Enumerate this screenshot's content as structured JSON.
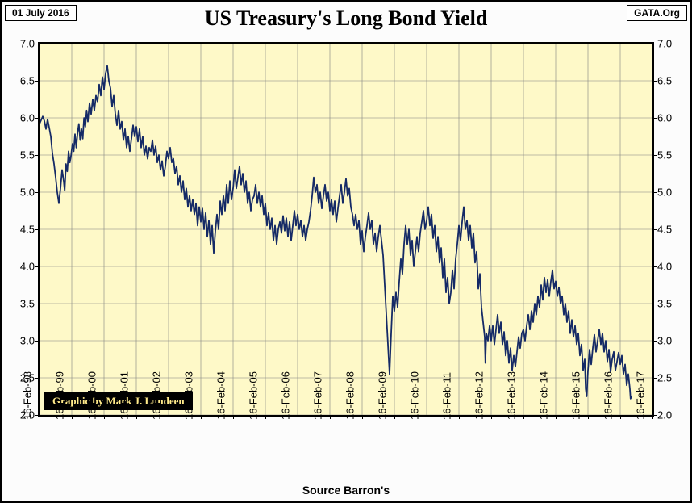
{
  "badges": {
    "date": "01 July 2016",
    "source": "GATA.Org"
  },
  "title": "US Treasury's Long Bond Yield",
  "footer_source": "Source Barron's",
  "credit": "Graphic by Mark J. Lundeen",
  "chart": {
    "type": "line",
    "background_color": "#fef9c8",
    "grid_color": "#808080",
    "line_color": "#152a66",
    "line_width": 1.8,
    "border_color": "#000000",
    "y_axis": {
      "min": 2.0,
      "max": 7.0,
      "step": 0.5,
      "ticks": [
        2.0,
        2.5,
        3.0,
        3.5,
        4.0,
        4.5,
        5.0,
        5.5,
        6.0,
        6.5,
        7.0
      ]
    },
    "x_axis": {
      "min": 0,
      "max": 19,
      "tick_labels": [
        "16-Feb-98",
        "16-Feb-99",
        "16-Feb-00",
        "16-Feb-01",
        "16-Feb-02",
        "16-Feb-03",
        "16-Feb-04",
        "16-Feb-05",
        "16-Feb-06",
        "16-Feb-07",
        "16-Feb-08",
        "16-Feb-09",
        "16-Feb-10",
        "16-Feb-11",
        "16-Feb-12",
        "16-Feb-13",
        "16-Feb-14",
        "16-Feb-15",
        "16-Feb-16",
        "16-Feb-17"
      ]
    },
    "series": [
      [
        0.0,
        5.92
      ],
      [
        0.05,
        5.97
      ],
      [
        0.1,
        6.02
      ],
      [
        0.15,
        5.96
      ],
      [
        0.2,
        5.85
      ],
      [
        0.25,
        5.98
      ],
      [
        0.3,
        5.87
      ],
      [
        0.35,
        5.75
      ],
      [
        0.4,
        5.52
      ],
      [
        0.45,
        5.38
      ],
      [
        0.5,
        5.2
      ],
      [
        0.55,
        5.0
      ],
      [
        0.6,
        4.85
      ],
      [
        0.65,
        5.05
      ],
      [
        0.7,
        5.3
      ],
      [
        0.75,
        5.15
      ],
      [
        0.78,
        5.02
      ],
      [
        0.82,
        5.38
      ],
      [
        0.86,
        5.28
      ],
      [
        0.9,
        5.55
      ],
      [
        0.94,
        5.4
      ],
      [
        0.98,
        5.5
      ],
      [
        1.02,
        5.65
      ],
      [
        1.06,
        5.55
      ],
      [
        1.1,
        5.78
      ],
      [
        1.14,
        5.6
      ],
      [
        1.18,
        5.8
      ],
      [
        1.22,
        5.92
      ],
      [
        1.26,
        5.7
      ],
      [
        1.3,
        5.85
      ],
      [
        1.34,
        5.72
      ],
      [
        1.38,
        6.0
      ],
      [
        1.42,
        5.88
      ],
      [
        1.46,
        6.1
      ],
      [
        1.5,
        5.95
      ],
      [
        1.55,
        6.2
      ],
      [
        1.6,
        6.05
      ],
      [
        1.65,
        6.25
      ],
      [
        1.7,
        6.1
      ],
      [
        1.75,
        6.3
      ],
      [
        1.8,
        6.22
      ],
      [
        1.85,
        6.45
      ],
      [
        1.9,
        6.3
      ],
      [
        1.95,
        6.55
      ],
      [
        2.0,
        6.38
      ],
      [
        2.05,
        6.6
      ],
      [
        2.1,
        6.7
      ],
      [
        2.15,
        6.5
      ],
      [
        2.2,
        6.4
      ],
      [
        2.25,
        6.15
      ],
      [
        2.3,
        6.3
      ],
      [
        2.35,
        6.05
      ],
      [
        2.4,
        5.9
      ],
      [
        2.45,
        6.1
      ],
      [
        2.5,
        5.85
      ],
      [
        2.55,
        5.95
      ],
      [
        2.6,
        5.7
      ],
      [
        2.65,
        5.85
      ],
      [
        2.7,
        5.6
      ],
      [
        2.75,
        5.75
      ],
      [
        2.8,
        5.55
      ],
      [
        2.85,
        5.72
      ],
      [
        2.9,
        5.9
      ],
      [
        2.95,
        5.75
      ],
      [
        3.0,
        5.88
      ],
      [
        3.05,
        5.68
      ],
      [
        3.1,
        5.85
      ],
      [
        3.15,
        5.6
      ],
      [
        3.2,
        5.75
      ],
      [
        3.25,
        5.5
      ],
      [
        3.3,
        5.62
      ],
      [
        3.35,
        5.45
      ],
      [
        3.4,
        5.6
      ],
      [
        3.45,
        5.55
      ],
      [
        3.5,
        5.7
      ],
      [
        3.55,
        5.5
      ],
      [
        3.6,
        5.62
      ],
      [
        3.65,
        5.4
      ],
      [
        3.7,
        5.5
      ],
      [
        3.75,
        5.3
      ],
      [
        3.8,
        5.42
      ],
      [
        3.85,
        5.22
      ],
      [
        3.9,
        5.35
      ],
      [
        3.95,
        5.55
      ],
      [
        4.0,
        5.45
      ],
      [
        4.05,
        5.6
      ],
      [
        4.1,
        5.4
      ],
      [
        4.15,
        5.45
      ],
      [
        4.2,
        5.25
      ],
      [
        4.25,
        5.35
      ],
      [
        4.3,
        5.1
      ],
      [
        4.35,
        5.22
      ],
      [
        4.4,
        5.0
      ],
      [
        4.45,
        5.15
      ],
      [
        4.5,
        4.9
      ],
      [
        4.55,
        5.05
      ],
      [
        4.6,
        4.8
      ],
      [
        4.65,
        4.95
      ],
      [
        4.7,
        4.75
      ],
      [
        4.75,
        4.9
      ],
      [
        4.8,
        4.7
      ],
      [
        4.85,
        4.85
      ],
      [
        4.9,
        4.55
      ],
      [
        4.95,
        4.8
      ],
      [
        5.0,
        4.6
      ],
      [
        5.05,
        4.78
      ],
      [
        5.1,
        4.5
      ],
      [
        5.15,
        4.72
      ],
      [
        5.2,
        4.4
      ],
      [
        5.25,
        4.62
      ],
      [
        5.3,
        4.3
      ],
      [
        5.35,
        4.55
      ],
      [
        5.4,
        4.18
      ],
      [
        5.45,
        4.48
      ],
      [
        5.5,
        4.7
      ],
      [
        5.55,
        4.5
      ],
      [
        5.6,
        4.88
      ],
      [
        5.65,
        4.7
      ],
      [
        5.7,
        4.95
      ],
      [
        5.75,
        4.75
      ],
      [
        5.8,
        5.1
      ],
      [
        5.85,
        4.85
      ],
      [
        5.9,
        5.15
      ],
      [
        5.95,
        4.9
      ],
      [
        6.0,
        5.05
      ],
      [
        6.05,
        5.3
      ],
      [
        6.1,
        5.05
      ],
      [
        6.15,
        5.2
      ],
      [
        6.2,
        5.35
      ],
      [
        6.25,
        5.1
      ],
      [
        6.3,
        5.25
      ],
      [
        6.35,
        5.0
      ],
      [
        6.4,
        5.15
      ],
      [
        6.45,
        4.85
      ],
      [
        6.5,
        5.0
      ],
      [
        6.55,
        4.75
      ],
      [
        6.6,
        4.9
      ],
      [
        6.65,
        4.95
      ],
      [
        6.7,
        5.1
      ],
      [
        6.75,
        4.85
      ],
      [
        6.8,
        5.0
      ],
      [
        6.85,
        4.8
      ],
      [
        6.9,
        4.95
      ],
      [
        6.95,
        4.7
      ],
      [
        7.0,
        4.85
      ],
      [
        7.05,
        4.55
      ],
      [
        7.1,
        4.72
      ],
      [
        7.15,
        4.5
      ],
      [
        7.2,
        4.65
      ],
      [
        7.25,
        4.35
      ],
      [
        7.3,
        4.55
      ],
      [
        7.35,
        4.3
      ],
      [
        7.4,
        4.5
      ],
      [
        7.45,
        4.6
      ],
      [
        7.5,
        4.45
      ],
      [
        7.55,
        4.68
      ],
      [
        7.6,
        4.48
      ],
      [
        7.65,
        4.65
      ],
      [
        7.7,
        4.4
      ],
      [
        7.75,
        4.6
      ],
      [
        7.8,
        4.35
      ],
      [
        7.85,
        4.55
      ],
      [
        7.9,
        4.75
      ],
      [
        7.95,
        4.55
      ],
      [
        8.0,
        4.7
      ],
      [
        8.05,
        4.5
      ],
      [
        8.1,
        4.62
      ],
      [
        8.15,
        4.4
      ],
      [
        8.2,
        4.55
      ],
      [
        8.25,
        4.35
      ],
      [
        8.3,
        4.5
      ],
      [
        8.35,
        4.6
      ],
      [
        8.4,
        4.75
      ],
      [
        8.45,
        4.95
      ],
      [
        8.5,
        5.2
      ],
      [
        8.55,
        5.0
      ],
      [
        8.6,
        5.1
      ],
      [
        8.65,
        4.85
      ],
      [
        8.7,
        5.0
      ],
      [
        8.75,
        4.78
      ],
      [
        8.8,
        4.95
      ],
      [
        8.85,
        5.1
      ],
      [
        8.9,
        4.88
      ],
      [
        8.95,
        5.0
      ],
      [
        9.0,
        4.75
      ],
      [
        9.05,
        4.9
      ],
      [
        9.1,
        4.7
      ],
      [
        9.15,
        4.88
      ],
      [
        9.2,
        4.6
      ],
      [
        9.25,
        4.78
      ],
      [
        9.3,
        4.95
      ],
      [
        9.35,
        5.1
      ],
      [
        9.4,
        4.85
      ],
      [
        9.45,
        5.0
      ],
      [
        9.5,
        5.18
      ],
      [
        9.55,
        4.95
      ],
      [
        9.6,
        5.05
      ],
      [
        9.65,
        4.8
      ],
      [
        9.7,
        4.7
      ],
      [
        9.75,
        4.55
      ],
      [
        9.8,
        4.7
      ],
      [
        9.85,
        4.5
      ],
      [
        9.9,
        4.62
      ],
      [
        9.95,
        4.3
      ],
      [
        10.0,
        4.48
      ],
      [
        10.05,
        4.2
      ],
      [
        10.1,
        4.4
      ],
      [
        10.15,
        4.55
      ],
      [
        10.2,
        4.72
      ],
      [
        10.25,
        4.5
      ],
      [
        10.3,
        4.62
      ],
      [
        10.35,
        4.3
      ],
      [
        10.4,
        4.45
      ],
      [
        10.45,
        4.2
      ],
      [
        10.5,
        4.4
      ],
      [
        10.55,
        4.55
      ],
      [
        10.6,
        4.35
      ],
      [
        10.65,
        4.15
      ],
      [
        10.7,
        3.75
      ],
      [
        10.75,
        3.35
      ],
      [
        10.8,
        2.95
      ],
      [
        10.85,
        2.55
      ],
      [
        10.9,
        3.1
      ],
      [
        10.95,
        3.6
      ],
      [
        11.0,
        3.4
      ],
      [
        11.05,
        3.65
      ],
      [
        11.1,
        3.45
      ],
      [
        11.15,
        3.8
      ],
      [
        11.2,
        4.1
      ],
      [
        11.25,
        3.9
      ],
      [
        11.3,
        4.3
      ],
      [
        11.35,
        4.55
      ],
      [
        11.4,
        4.3
      ],
      [
        11.45,
        4.5
      ],
      [
        11.5,
        4.15
      ],
      [
        11.55,
        4.35
      ],
      [
        11.6,
        4.0
      ],
      [
        11.65,
        4.2
      ],
      [
        11.7,
        4.4
      ],
      [
        11.75,
        4.2
      ],
      [
        11.8,
        4.45
      ],
      [
        11.85,
        4.6
      ],
      [
        11.9,
        4.75
      ],
      [
        11.95,
        4.5
      ],
      [
        12.0,
        4.62
      ],
      [
        12.05,
        4.8
      ],
      [
        12.1,
        4.55
      ],
      [
        12.15,
        4.7
      ],
      [
        12.2,
        4.38
      ],
      [
        12.25,
        4.55
      ],
      [
        12.3,
        4.2
      ],
      [
        12.35,
        4.4
      ],
      [
        12.4,
        4.05
      ],
      [
        12.45,
        4.25
      ],
      [
        12.5,
        3.85
      ],
      [
        12.55,
        4.1
      ],
      [
        12.6,
        3.65
      ],
      [
        12.65,
        3.85
      ],
      [
        12.7,
        3.5
      ],
      [
        12.75,
        3.65
      ],
      [
        12.8,
        3.95
      ],
      [
        12.85,
        3.7
      ],
      [
        12.9,
        4.1
      ],
      [
        12.95,
        4.3
      ],
      [
        13.0,
        4.55
      ],
      [
        13.05,
        4.35
      ],
      [
        13.1,
        4.6
      ],
      [
        13.15,
        4.8
      ],
      [
        13.2,
        4.5
      ],
      [
        13.25,
        4.62
      ],
      [
        13.3,
        4.35
      ],
      [
        13.35,
        4.55
      ],
      [
        13.4,
        4.25
      ],
      [
        13.45,
        4.45
      ],
      [
        13.5,
        4.05
      ],
      [
        13.55,
        4.2
      ],
      [
        13.6,
        3.7
      ],
      [
        13.65,
        3.9
      ],
      [
        13.7,
        3.45
      ],
      [
        13.75,
        3.25
      ],
      [
        13.8,
        3.05
      ],
      [
        13.82,
        2.7
      ],
      [
        13.85,
        3.1
      ],
      [
        13.9,
        3.0
      ],
      [
        13.95,
        3.2
      ],
      [
        14.0,
        3.0
      ],
      [
        14.05,
        3.2
      ],
      [
        14.1,
        2.95
      ],
      [
        14.15,
        3.15
      ],
      [
        14.2,
        3.35
      ],
      [
        14.25,
        3.1
      ],
      [
        14.3,
        3.25
      ],
      [
        14.35,
        2.95
      ],
      [
        14.4,
        3.12
      ],
      [
        14.45,
        2.8
      ],
      [
        14.5,
        3.0
      ],
      [
        14.55,
        2.7
      ],
      [
        14.6,
        2.9
      ],
      [
        14.65,
        2.6
      ],
      [
        14.7,
        2.8
      ],
      [
        14.75,
        2.65
      ],
      [
        14.8,
        2.85
      ],
      [
        14.85,
        3.05
      ],
      [
        14.9,
        2.9
      ],
      [
        14.95,
        3.1
      ],
      [
        15.0,
        3.15
      ],
      [
        15.05,
        3.0
      ],
      [
        15.1,
        3.2
      ],
      [
        15.15,
        3.35
      ],
      [
        15.2,
        3.15
      ],
      [
        15.25,
        3.4
      ],
      [
        15.3,
        3.25
      ],
      [
        15.35,
        3.5
      ],
      [
        15.4,
        3.35
      ],
      [
        15.45,
        3.6
      ],
      [
        15.5,
        3.45
      ],
      [
        15.55,
        3.75
      ],
      [
        15.6,
        3.55
      ],
      [
        15.65,
        3.85
      ],
      [
        15.7,
        3.65
      ],
      [
        15.75,
        3.82
      ],
      [
        15.8,
        3.6
      ],
      [
        15.85,
        3.8
      ],
      [
        15.9,
        3.95
      ],
      [
        15.95,
        3.7
      ],
      [
        16.0,
        3.8
      ],
      [
        16.05,
        3.6
      ],
      [
        16.1,
        3.72
      ],
      [
        16.15,
        3.5
      ],
      [
        16.2,
        3.6
      ],
      [
        16.25,
        3.35
      ],
      [
        16.3,
        3.5
      ],
      [
        16.35,
        3.25
      ],
      [
        16.4,
        3.4
      ],
      [
        16.45,
        3.1
      ],
      [
        16.5,
        3.28
      ],
      [
        16.55,
        3.05
      ],
      [
        16.6,
        3.2
      ],
      [
        16.65,
        2.95
      ],
      [
        16.7,
        3.1
      ],
      [
        16.75,
        2.8
      ],
      [
        16.8,
        2.95
      ],
      [
        16.85,
        2.6
      ],
      [
        16.9,
        2.75
      ],
      [
        16.93,
        2.35
      ],
      [
        16.96,
        2.25
      ],
      [
        17.0,
        2.6
      ],
      [
        17.05,
        2.88
      ],
      [
        17.1,
        2.68
      ],
      [
        17.15,
        2.9
      ],
      [
        17.2,
        3.08
      ],
      [
        17.25,
        2.85
      ],
      [
        17.3,
        3.0
      ],
      [
        17.35,
        3.15
      ],
      [
        17.4,
        2.95
      ],
      [
        17.45,
        3.1
      ],
      [
        17.5,
        2.85
      ],
      [
        17.55,
        3.0
      ],
      [
        17.6,
        2.72
      ],
      [
        17.65,
        2.88
      ],
      [
        17.7,
        2.58
      ],
      [
        17.75,
        2.75
      ],
      [
        17.8,
        2.85
      ],
      [
        17.85,
        2.6
      ],
      [
        17.9,
        2.72
      ],
      [
        17.95,
        2.84
      ],
      [
        18.0,
        2.68
      ],
      [
        18.05,
        2.8
      ],
      [
        18.1,
        2.55
      ],
      [
        18.15,
        2.68
      ],
      [
        18.2,
        2.4
      ],
      [
        18.25,
        2.55
      ],
      [
        18.3,
        2.35
      ],
      [
        18.32,
        2.22
      ],
      [
        18.35,
        2.25
      ]
    ]
  }
}
